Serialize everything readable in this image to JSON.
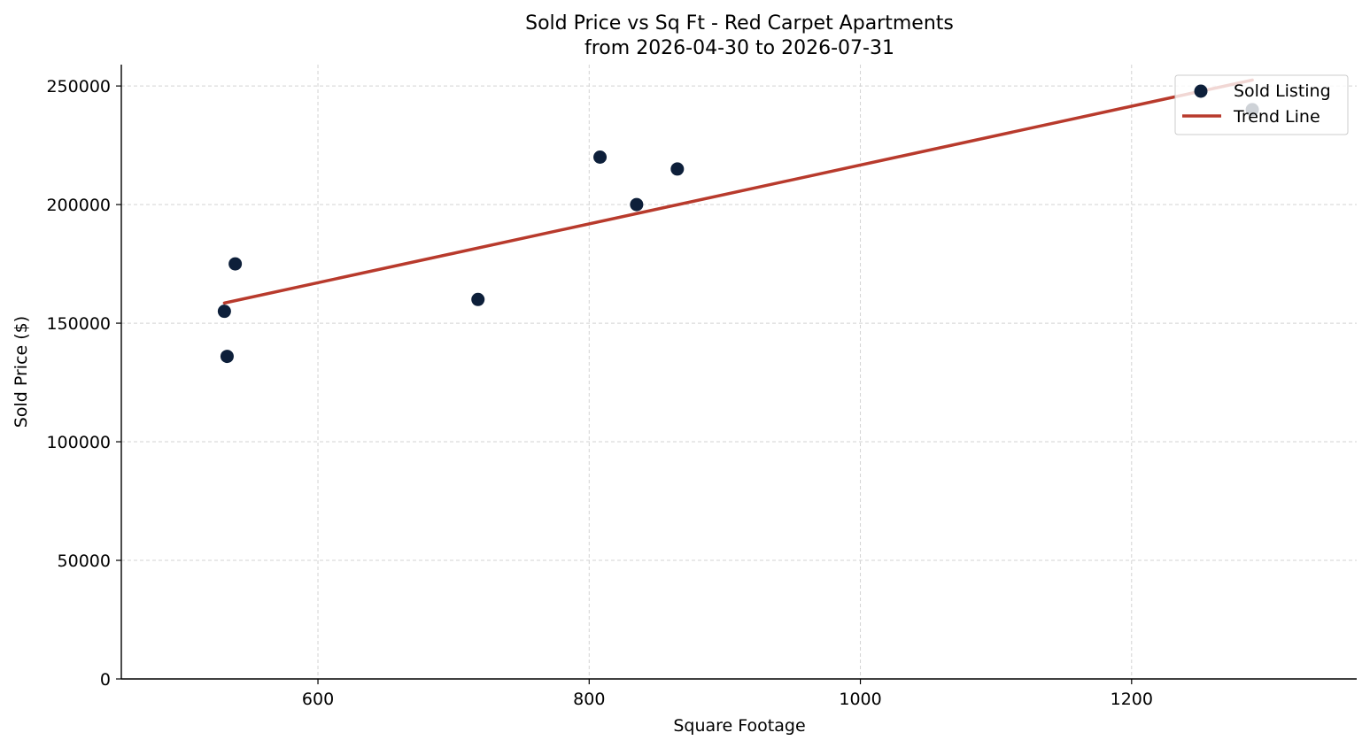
{
  "chart_data": {
    "type": "scatter",
    "title": "Sold Price vs Sq Ft - Red Carpet Apartments",
    "subtitle": "from 2026-04-30 to 2026-07-31",
    "xlabel": "Square Footage",
    "ylabel": "Sold Price ($)",
    "xlim": [
      455,
      1366
    ],
    "ylim": [
      0,
      259000
    ],
    "x_ticks": [
      600,
      800,
      1000,
      1200
    ],
    "y_ticks": [
      0,
      50000,
      100000,
      150000,
      200000,
      250000
    ],
    "grid": true,
    "legend_position": "top-right",
    "series": [
      {
        "name": "Sold Listing",
        "kind": "scatter",
        "color": "#0d1f3a",
        "points": [
          {
            "x": 531,
            "y": 155000
          },
          {
            "x": 533,
            "y": 136000
          },
          {
            "x": 539,
            "y": 175000
          },
          {
            "x": 718,
            "y": 160000
          },
          {
            "x": 808,
            "y": 220000
          },
          {
            "x": 835,
            "y": 200000
          },
          {
            "x": 865,
            "y": 215000
          },
          {
            "x": 1289,
            "y": 240000
          }
        ]
      },
      {
        "name": "Trend Line",
        "kind": "line",
        "color": "#b83a2c",
        "points": [
          {
            "x": 531,
            "y": 158500
          },
          {
            "x": 1289,
            "y": 252500
          }
        ]
      }
    ]
  }
}
